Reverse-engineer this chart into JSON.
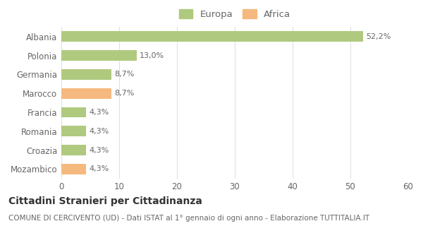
{
  "categories": [
    "Albania",
    "Polonia",
    "Germania",
    "Marocco",
    "Francia",
    "Romania",
    "Croazia",
    "Mozambico"
  ],
  "values": [
    52.2,
    13.0,
    8.7,
    8.7,
    4.3,
    4.3,
    4.3,
    4.3
  ],
  "labels": [
    "52,2%",
    "13,0%",
    "8,7%",
    "8,7%",
    "4,3%",
    "4,3%",
    "4,3%",
    "4,3%"
  ],
  "colors": [
    "#afc97e",
    "#afc97e",
    "#afc97e",
    "#f5b97f",
    "#afc97e",
    "#afc97e",
    "#afc97e",
    "#f5b97f"
  ],
  "legend": [
    {
      "label": "Europa",
      "color": "#afc97e"
    },
    {
      "label": "Africa",
      "color": "#f5b97f"
    }
  ],
  "xlim": [
    0,
    60
  ],
  "xticks": [
    0,
    10,
    20,
    30,
    40,
    50,
    60
  ],
  "title": "Cittadini Stranieri per Cittadinanza",
  "subtitle": "COMUNE DI CERCIVENTO (UD) - Dati ISTAT al 1° gennaio di ogni anno - Elaborazione TUTTITALIA.IT",
  "bg_color": "#ffffff",
  "grid_color": "#e0e0e0",
  "bar_height": 0.55,
  "title_fontsize": 10,
  "subtitle_fontsize": 7.5,
  "label_fontsize": 8,
  "tick_fontsize": 8.5,
  "legend_fontsize": 9.5
}
